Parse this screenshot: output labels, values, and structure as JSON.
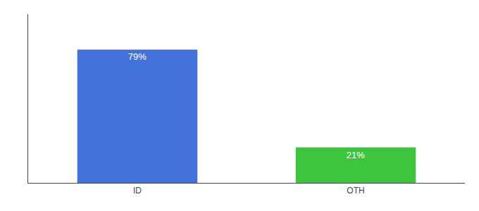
{
  "chart_data": {
    "type": "bar",
    "categories": [
      "ID",
      "OTH"
    ],
    "values": [
      79,
      21
    ],
    "value_labels": [
      "79%",
      "21%"
    ],
    "colors": [
      "#4472db",
      "#3dc63d"
    ],
    "ylim": [
      0,
      100
    ],
    "grid": false,
    "data_labels": true,
    "tick_labels": "x"
  }
}
